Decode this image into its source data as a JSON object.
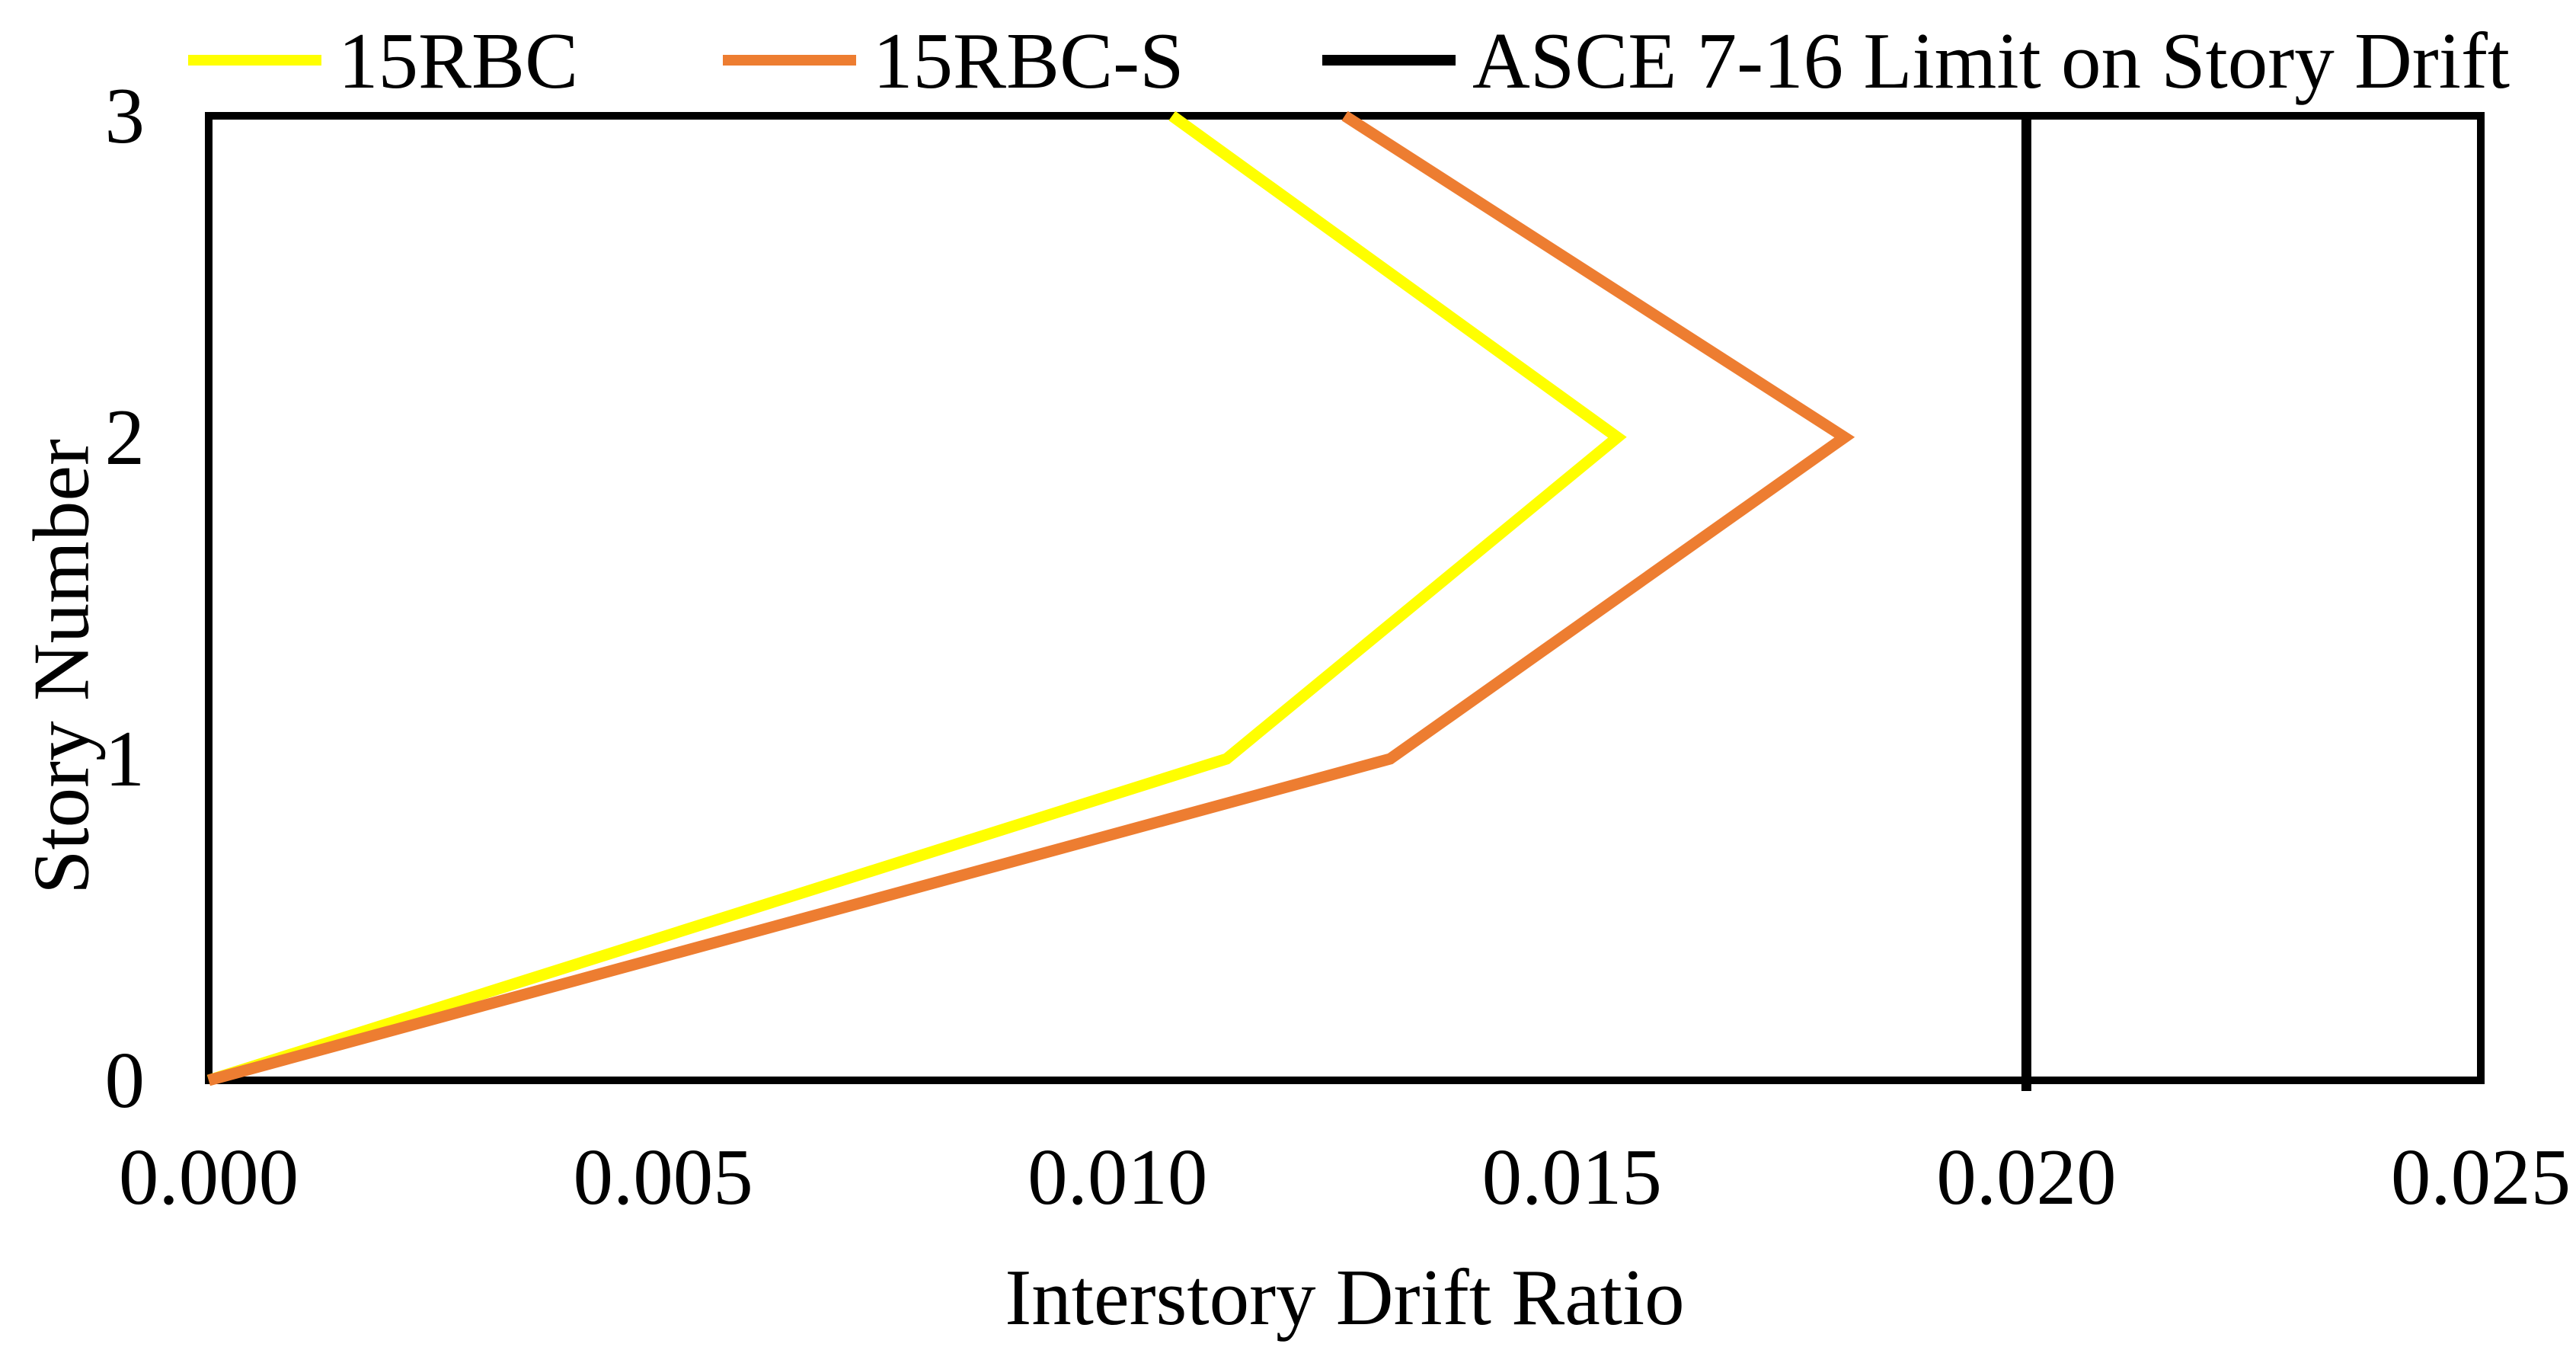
{
  "chart_data": {
    "type": "line",
    "title": "",
    "xlabel": "Interstory Drift Ratio",
    "ylabel": "Story Number",
    "xlim": [
      0.0,
      0.025
    ],
    "ylim": [
      0,
      3
    ],
    "grid": false,
    "legend_position": "top",
    "background": "#FFFFFF",
    "axis_color": "#000000",
    "x_ticks": [
      {
        "label": "0.000",
        "value": 0.0
      },
      {
        "label": "0.005",
        "value": 0.005
      },
      {
        "label": "0.010",
        "value": 0.01
      },
      {
        "label": "0.015",
        "value": 0.015
      },
      {
        "label": "0.020",
        "value": 0.02
      },
      {
        "label": "0.025",
        "value": 0.025
      }
    ],
    "y_ticks": [
      {
        "label": "0",
        "value": 0
      },
      {
        "label": "1",
        "value": 1
      },
      {
        "label": "2",
        "value": 2
      },
      {
        "label": "3",
        "value": 3
      }
    ],
    "series": [
      {
        "name": "15RBC",
        "type": "line",
        "color": "#FFFF00",
        "x": [
          0.0,
          0.0112,
          0.0155,
          0.0106
        ],
        "y": [
          0,
          1,
          2,
          3
        ]
      },
      {
        "name": "15RBC-S",
        "type": "line",
        "color": "#ED7D31",
        "x": [
          0.0,
          0.013,
          0.018,
          0.0125
        ],
        "y": [
          0,
          1,
          2,
          3
        ]
      },
      {
        "name": "ASCE 7-16 Limit on Story Drift",
        "type": "vline",
        "color": "#000000",
        "x_value": 0.02,
        "y": [
          0,
          3
        ]
      }
    ]
  }
}
